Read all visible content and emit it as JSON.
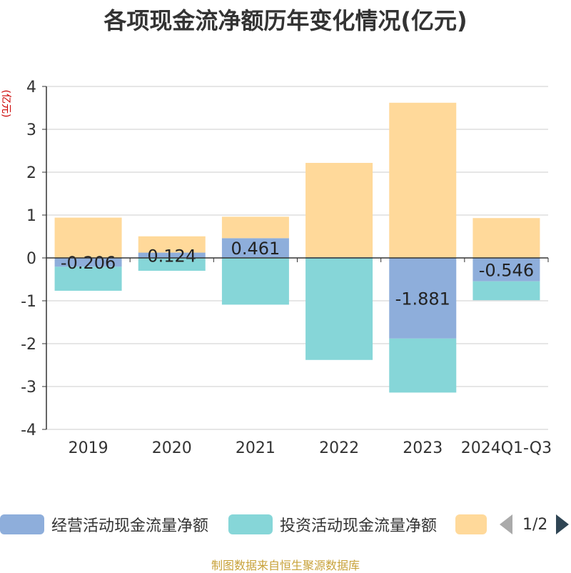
{
  "title": "各项现金流净额历年变化情况(亿元)",
  "source": "制图数据来自恒生聚源数据库",
  "pager": {
    "text": "1/2"
  },
  "chart_data": {
    "type": "bar",
    "stacked": true,
    "title": "各项现金流净额历年变化情况(亿元)",
    "ylabel": "(亿元)",
    "xlabel": "",
    "ylim": [
      -4,
      4
    ],
    "yticks": [
      4,
      3,
      2,
      1,
      0,
      -1,
      -2,
      -3,
      -4
    ],
    "grid": true,
    "legend_position": "bottom",
    "categories": [
      "2019",
      "2020",
      "2021",
      "2022",
      "2023",
      "2024Q1-Q3"
    ],
    "series": [
      {
        "name": "经营活动现金流量净额",
        "color": "#8eaedb",
        "values": [
          -0.206,
          0.124,
          0.461,
          0.017,
          -1.881,
          -0.546
        ],
        "labels": [
          "-0.206",
          "0.124",
          "0.461",
          "",
          "-1.881",
          "-0.546"
        ]
      },
      {
        "name": "投资活动现金流量净额",
        "color": "#86d6d8",
        "values": [
          -0.56,
          -0.3,
          -1.09,
          -2.38,
          -1.26,
          -0.44
        ]
      },
      {
        "name": "",
        "color": "#ffd99a",
        "values": [
          0.94,
          0.38,
          0.5,
          2.2,
          3.62,
          0.93
        ]
      }
    ]
  }
}
